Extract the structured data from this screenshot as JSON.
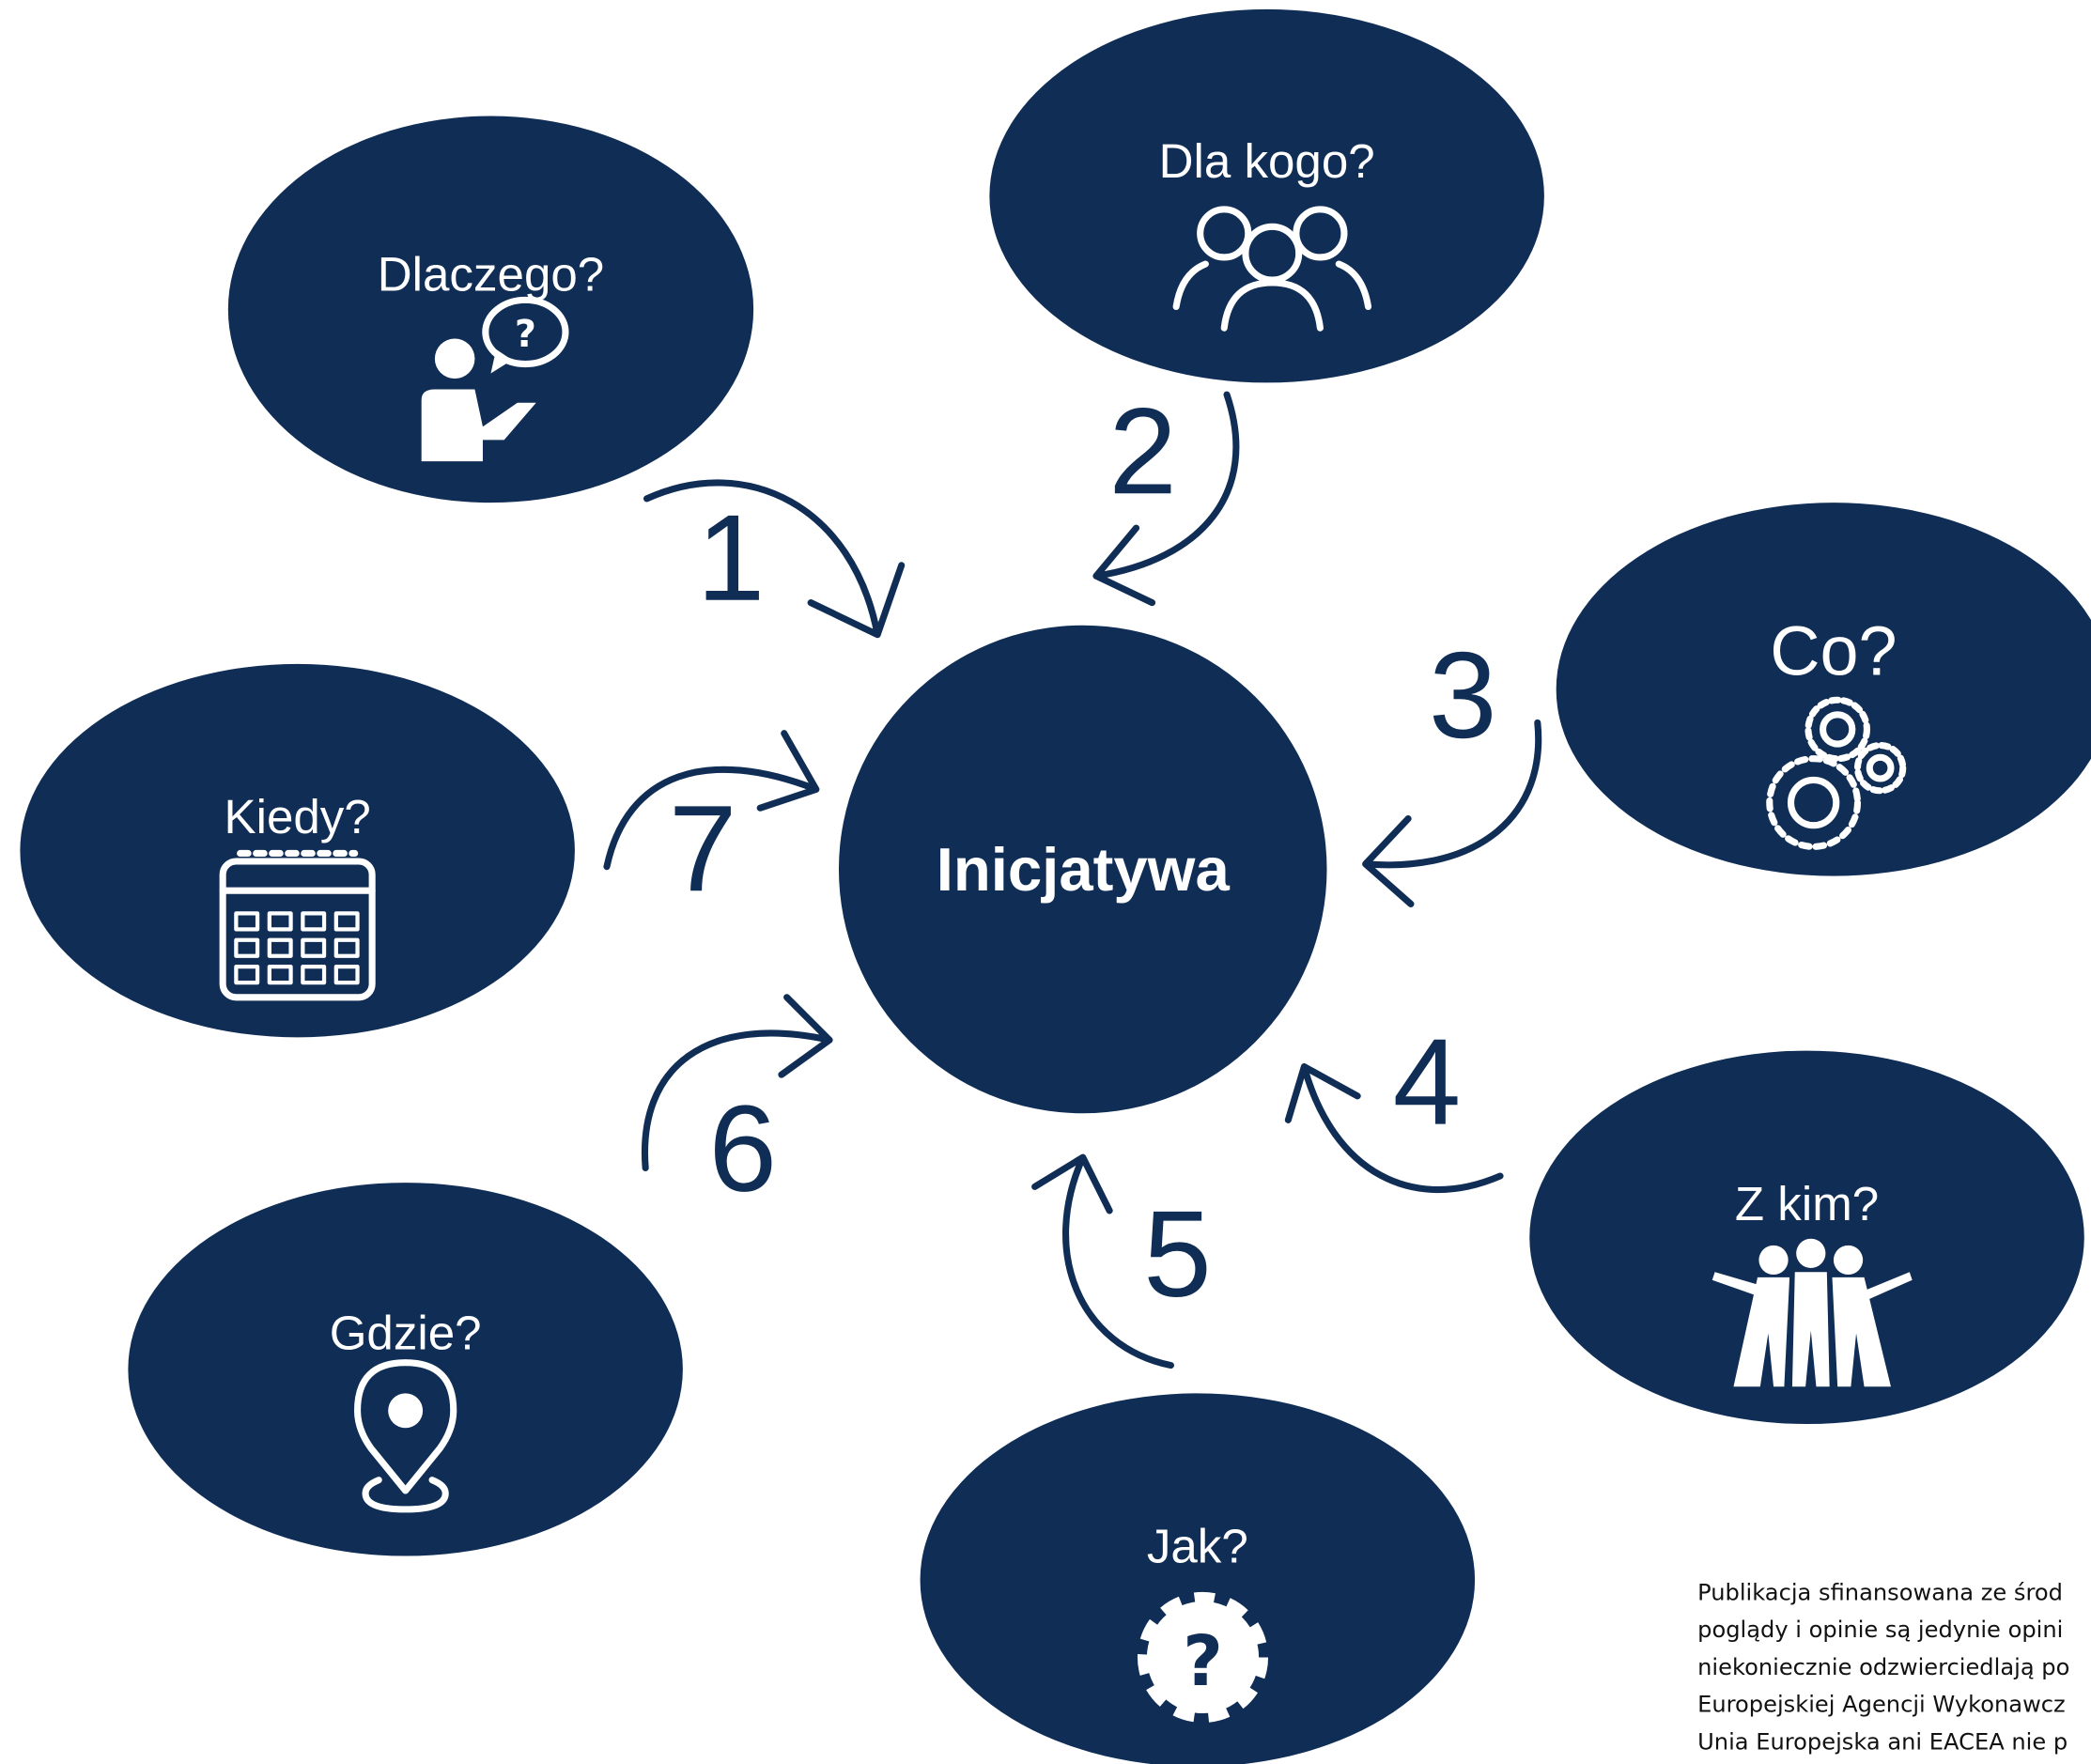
{
  "center": {
    "label": "Inicjatywa"
  },
  "nodes": [
    {
      "label": "Dlaczego?",
      "number": "1"
    },
    {
      "label": "Dla kogo?",
      "number": "2"
    },
    {
      "label": "Co?",
      "number": "3"
    },
    {
      "label": "Z kim?",
      "number": "4"
    },
    {
      "label": "Jak?",
      "number": "5"
    },
    {
      "label": "Gdzie?",
      "number": "6"
    },
    {
      "label": "Kiedy?",
      "number": "7"
    }
  ],
  "footer": {
    "lines": [
      "Publikacja sfinansowana ze środ",
      "poglądy i opinie są jedynie opini",
      "niekoniecznie odzwierciedlają po",
      "Europejskiej Agencji Wykonawcz",
      "Unia Europejska ani EACEA nie p"
    ]
  }
}
